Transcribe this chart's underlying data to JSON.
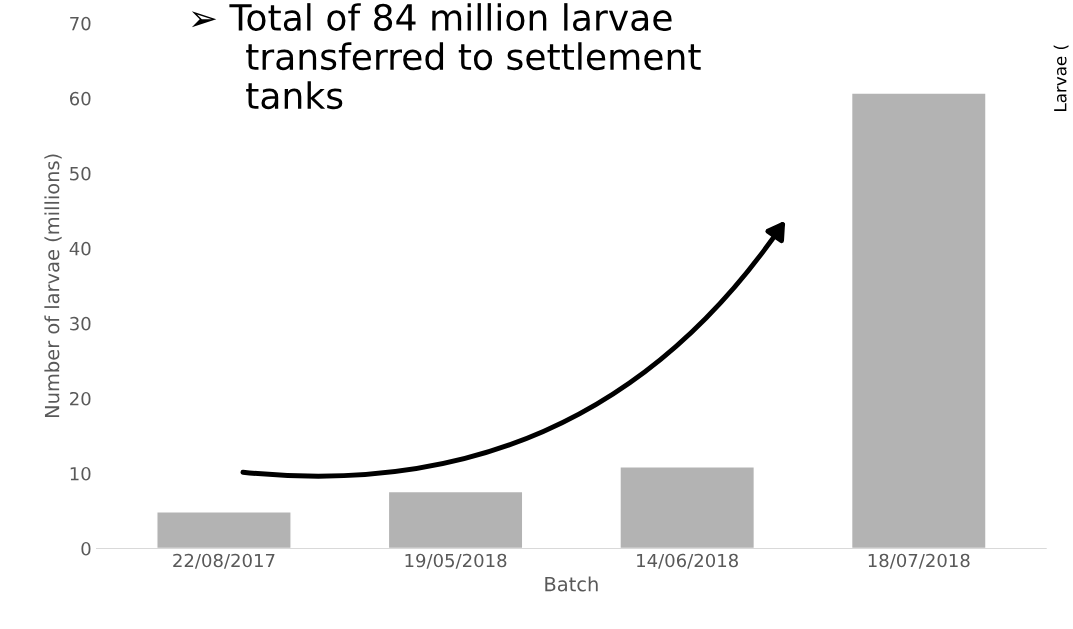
{
  "chart_data": {
    "type": "bar",
    "xlabel": "Batch",
    "ylabel": "Number of larvae (millions)",
    "categories": [
      "22/08/2017",
      "19/05/2018",
      "14/06/2018",
      "18/07/2018"
    ],
    "values": [
      4.9,
      7.6,
      10.9,
      60.7
    ],
    "color": "#b3b3b3",
    "ylim": [
      0,
      70
    ],
    "yticks": [
      0,
      10,
      20,
      30,
      40,
      50,
      60,
      70
    ],
    "grid": false,
    "legend": false,
    "annotations": [
      "➢ Total of 84 million larvae\n     transferred to settlement\n     tanks",
      "Larvae ("
    ]
  }
}
